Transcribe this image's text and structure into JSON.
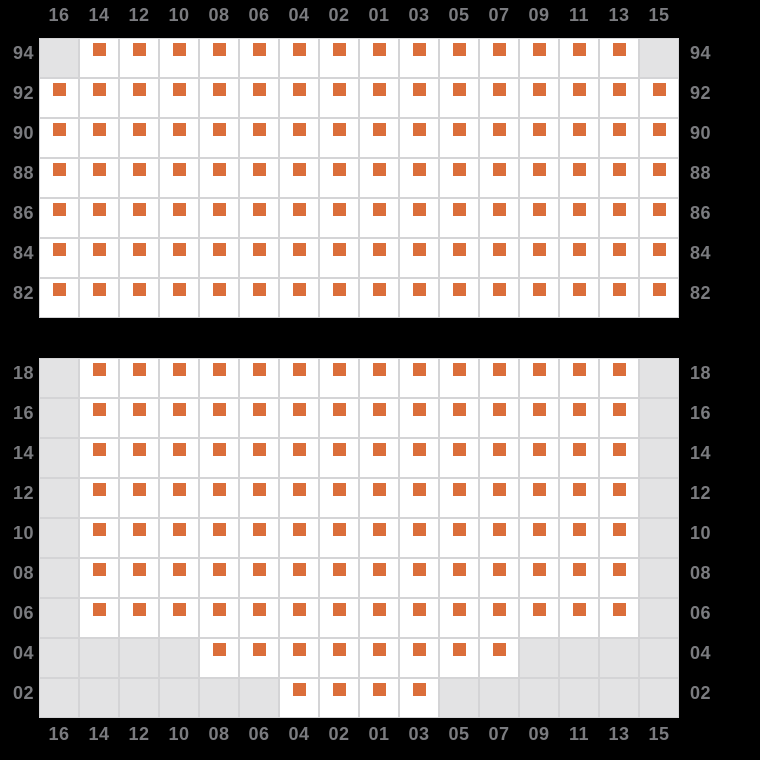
{
  "seat_map": {
    "column_labels": [
      "16",
      "14",
      "12",
      "10",
      "08",
      "06",
      "04",
      "02",
      "01",
      "03",
      "05",
      "07",
      "09",
      "11",
      "13",
      "15"
    ],
    "colors": {
      "background": "#000000",
      "seat": "#db6e3a",
      "available_cell": "#ffffff",
      "unavailable_cell": "#e3e3e4",
      "grid_line": "#d4d4d6",
      "label_text": "#7a7b7f"
    },
    "sections": [
      {
        "id": "upper",
        "row_labels": [
          "94",
          "92",
          "90",
          "88",
          "86",
          "84",
          "82"
        ],
        "rows": [
          [
            0,
            1,
            1,
            1,
            1,
            1,
            1,
            1,
            1,
            1,
            1,
            1,
            1,
            1,
            1,
            0
          ],
          [
            1,
            1,
            1,
            1,
            1,
            1,
            1,
            1,
            1,
            1,
            1,
            1,
            1,
            1,
            1,
            1
          ],
          [
            1,
            1,
            1,
            1,
            1,
            1,
            1,
            1,
            1,
            1,
            1,
            1,
            1,
            1,
            1,
            1
          ],
          [
            1,
            1,
            1,
            1,
            1,
            1,
            1,
            1,
            1,
            1,
            1,
            1,
            1,
            1,
            1,
            1
          ],
          [
            1,
            1,
            1,
            1,
            1,
            1,
            1,
            1,
            1,
            1,
            1,
            1,
            1,
            1,
            1,
            1
          ],
          [
            1,
            1,
            1,
            1,
            1,
            1,
            1,
            1,
            1,
            1,
            1,
            1,
            1,
            1,
            1,
            1
          ],
          [
            1,
            1,
            1,
            1,
            1,
            1,
            1,
            1,
            1,
            1,
            1,
            1,
            1,
            1,
            1,
            1
          ]
        ]
      },
      {
        "id": "lower",
        "row_labels": [
          "18",
          "16",
          "14",
          "12",
          "10",
          "08",
          "06",
          "04",
          "02"
        ],
        "rows": [
          [
            0,
            1,
            1,
            1,
            1,
            1,
            1,
            1,
            1,
            1,
            1,
            1,
            1,
            1,
            1,
            0
          ],
          [
            0,
            1,
            1,
            1,
            1,
            1,
            1,
            1,
            1,
            1,
            1,
            1,
            1,
            1,
            1,
            0
          ],
          [
            0,
            1,
            1,
            1,
            1,
            1,
            1,
            1,
            1,
            1,
            1,
            1,
            1,
            1,
            1,
            0
          ],
          [
            0,
            1,
            1,
            1,
            1,
            1,
            1,
            1,
            1,
            1,
            1,
            1,
            1,
            1,
            1,
            0
          ],
          [
            0,
            1,
            1,
            1,
            1,
            1,
            1,
            1,
            1,
            1,
            1,
            1,
            1,
            1,
            1,
            0
          ],
          [
            0,
            1,
            1,
            1,
            1,
            1,
            1,
            1,
            1,
            1,
            1,
            1,
            1,
            1,
            1,
            0
          ],
          [
            0,
            1,
            1,
            1,
            1,
            1,
            1,
            1,
            1,
            1,
            1,
            1,
            1,
            1,
            1,
            0
          ],
          [
            0,
            0,
            0,
            0,
            1,
            1,
            1,
            1,
            1,
            1,
            1,
            1,
            0,
            0,
            0,
            0
          ],
          [
            0,
            0,
            0,
            0,
            0,
            0,
            1,
            1,
            1,
            1,
            0,
            0,
            0,
            0,
            0,
            0
          ]
        ]
      }
    ]
  }
}
